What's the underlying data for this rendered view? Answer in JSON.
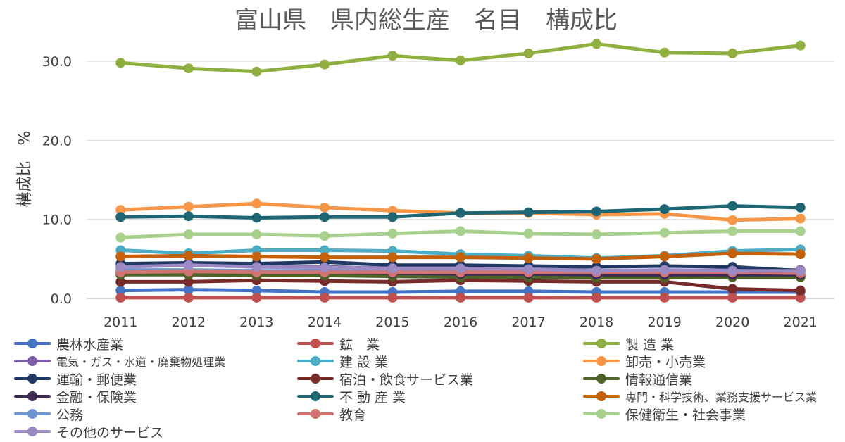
{
  "chart_data": {
    "type": "line",
    "title": "富山県　県内総生産　名目　構成比",
    "xlabel": "",
    "ylabel": "構成比　%",
    "ylim": [
      0,
      33
    ],
    "yticks": [
      "0.0",
      "10.0",
      "20.0",
      "30.0"
    ],
    "ytick_values": [
      0,
      10,
      20,
      30
    ],
    "grid": true,
    "legend_position": "bottom",
    "categories": [
      "2011",
      "2012",
      "2013",
      "2014",
      "2015",
      "2016",
      "2017",
      "2018",
      "2019",
      "2020",
      "2021"
    ],
    "series": [
      {
        "name": "農林水産業",
        "color": "#4472C4",
        "values": [
          1.0,
          1.1,
          1.0,
          0.8,
          0.8,
          0.9,
          0.9,
          0.8,
          0.8,
          0.8,
          0.8
        ]
      },
      {
        "name": "鉱　業",
        "color": "#C0504D",
        "values": [
          0.1,
          0.1,
          0.1,
          0.1,
          0.1,
          0.1,
          0.1,
          0.1,
          0.1,
          0.1,
          0.1
        ]
      },
      {
        "name": "製 造 業",
        "color": "#8FB040",
        "values": [
          29.8,
          29.1,
          28.7,
          29.6,
          30.7,
          30.1,
          31.0,
          32.2,
          31.1,
          31.0,
          32.0
        ]
      },
      {
        "name": "電気・ガス・水道・廃棄物処理業",
        "color": "#7E5FA6",
        "values": [
          4.1,
          4.3,
          4.0,
          4.0,
          3.8,
          3.9,
          3.8,
          3.5,
          3.5,
          3.6,
          3.6
        ]
      },
      {
        "name": "建 設 業",
        "color": "#4BACC6",
        "values": [
          6.1,
          5.7,
          6.1,
          6.1,
          6.0,
          5.6,
          5.4,
          5.1,
          5.4,
          6.0,
          6.2
        ]
      },
      {
        "name": "卸売・小売業",
        "color": "#F79646",
        "values": [
          11.2,
          11.6,
          12.0,
          11.5,
          11.1,
          10.8,
          10.8,
          10.6,
          10.7,
          9.9,
          10.1
        ]
      },
      {
        "name": "運輸・郵便業",
        "color": "#1F3864",
        "values": [
          4.4,
          4.5,
          4.4,
          4.6,
          4.2,
          4.2,
          4.1,
          4.0,
          4.1,
          4.0,
          3.5
        ]
      },
      {
        "name": "宿泊・飲食サービス業",
        "color": "#772C2A",
        "values": [
          2.1,
          2.1,
          2.3,
          2.2,
          2.1,
          2.3,
          2.2,
          2.1,
          2.1,
          1.2,
          1.0
        ]
      },
      {
        "name": "情報通信業",
        "color": "#4F6228",
        "values": [
          3.0,
          3.0,
          2.9,
          2.9,
          2.8,
          2.7,
          2.7,
          2.6,
          2.6,
          2.7,
          2.7
        ]
      },
      {
        "name": "金融・保険業",
        "color": "#3F2A56",
        "values": [
          3.3,
          3.4,
          3.3,
          3.3,
          3.2,
          3.1,
          3.1,
          3.0,
          3.0,
          3.0,
          3.0
        ]
      },
      {
        "name": "不 動 産 業",
        "color": "#1F6675",
        "values": [
          10.3,
          10.4,
          10.2,
          10.3,
          10.3,
          10.8,
          10.9,
          11.0,
          11.3,
          11.7,
          11.5
        ]
      },
      {
        "name": "専門・科学技術、業務支援サービス業",
        "color": "#C5600B",
        "values": [
          5.3,
          5.4,
          5.3,
          5.2,
          5.2,
          5.2,
          5.1,
          5.0,
          5.3,
          5.7,
          5.6
        ]
      },
      {
        "name": "公務",
        "color": "#6F95CF",
        "values": [
          3.6,
          3.6,
          3.5,
          3.5,
          3.5,
          3.5,
          3.4,
          3.3,
          3.4,
          3.5,
          3.4
        ]
      },
      {
        "name": "教育",
        "color": "#D07371",
        "values": [
          3.3,
          3.4,
          3.3,
          3.3,
          3.3,
          3.3,
          3.3,
          3.3,
          3.3,
          3.3,
          3.2
        ]
      },
      {
        "name": "保健衛生・社会事業",
        "color": "#A9D18E",
        "values": [
          7.7,
          8.1,
          8.1,
          7.9,
          8.2,
          8.5,
          8.2,
          8.1,
          8.3,
          8.5,
          8.5
        ]
      },
      {
        "name": "その他のサービス",
        "color": "#9B8AC4",
        "values": [
          4.0,
          4.2,
          4.0,
          3.9,
          3.8,
          3.8,
          3.7,
          3.5,
          3.6,
          3.5,
          3.5
        ]
      }
    ]
  }
}
